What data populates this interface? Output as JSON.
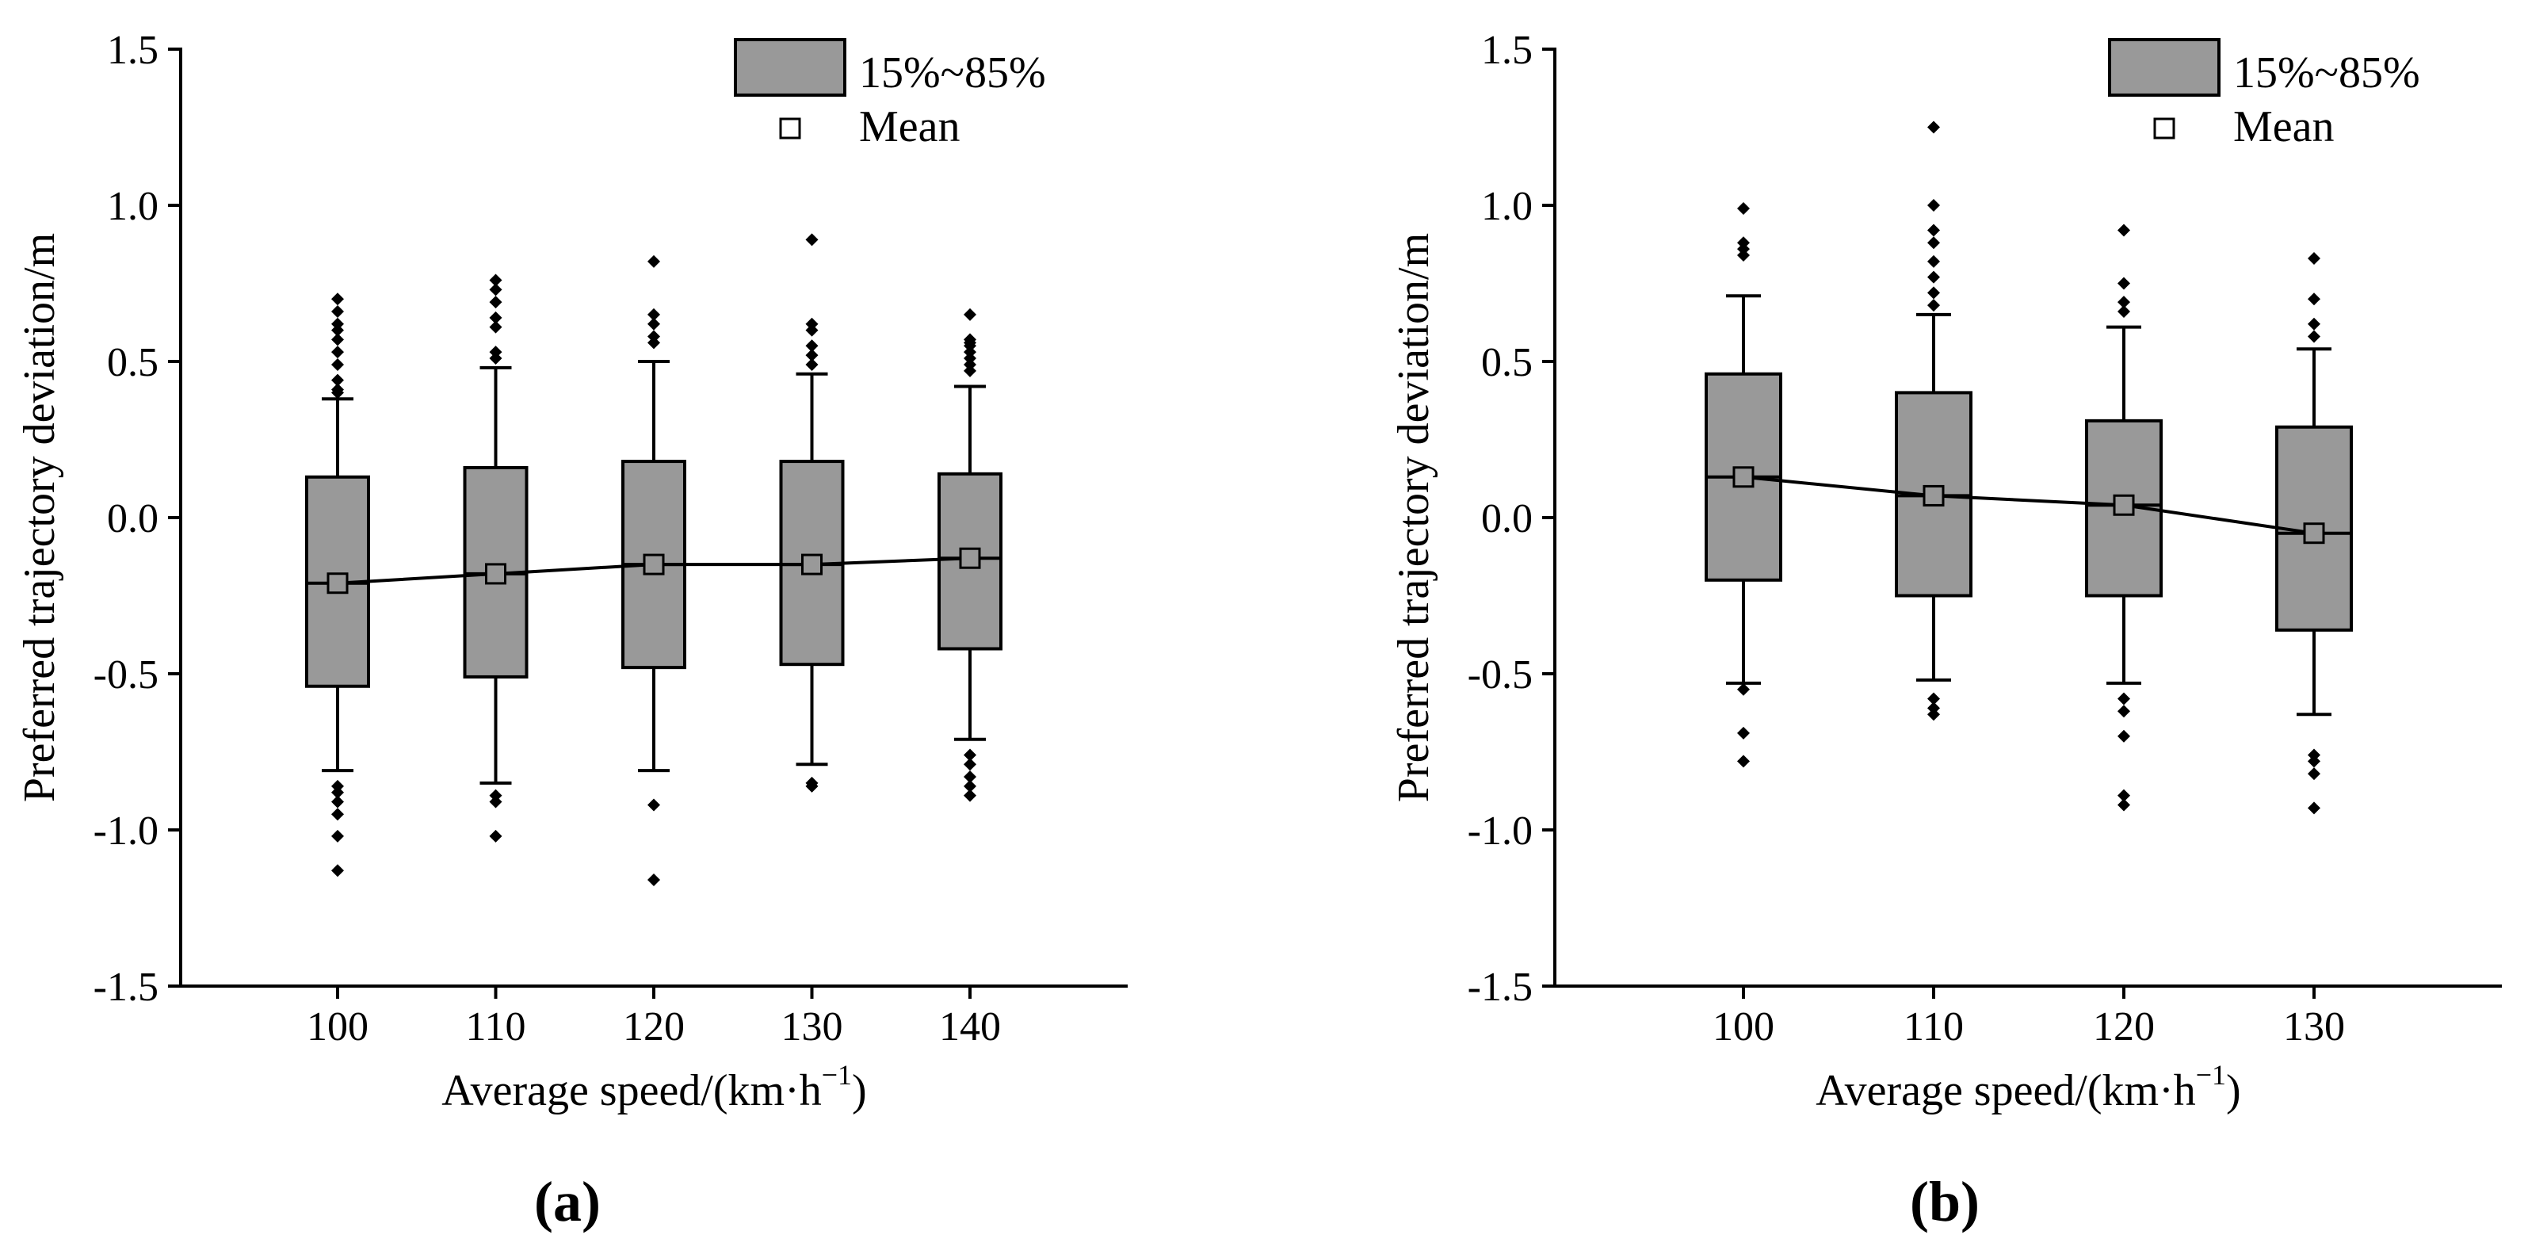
{
  "chart_data": [
    {
      "type": "box",
      "panel_label": "(a)",
      "xlabel": "Average speed/(km·h",
      "xlabel_sup": "−1",
      "xlabel_close": ")",
      "ylabel": "Preferred trajectory deviation/m",
      "ylim": [
        -1.5,
        1.5
      ],
      "yticks": [
        -1.5,
        -1.0,
        -0.5,
        0.0,
        0.5,
        1.0,
        1.5
      ],
      "ytick_labels": [
        "-1.5",
        "-1.0",
        "-0.5",
        "0.0",
        "0.5",
        "1.0",
        "1.5"
      ],
      "categories": [
        "100",
        "110",
        "120",
        "130",
        "140"
      ],
      "legend": {
        "box_label": "15%~85%",
        "mean_label": "Mean",
        "position": "top-right"
      },
      "boxes": [
        {
          "q_low": -0.54,
          "q_high": 0.13,
          "median": -0.21,
          "mean": -0.21,
          "whisker_low": -0.81,
          "whisker_high": 0.38,
          "outliers": [
            0.7,
            0.66,
            0.62,
            0.6,
            0.57,
            0.53,
            0.49,
            0.44,
            0.41,
            0.4,
            -0.86,
            -0.88,
            -0.91,
            -0.95,
            -1.02,
            -1.13
          ]
        },
        {
          "q_low": -0.51,
          "q_high": 0.16,
          "median": -0.18,
          "mean": -0.18,
          "whisker_low": -0.85,
          "whisker_high": 0.48,
          "outliers": [
            0.76,
            0.73,
            0.69,
            0.64,
            0.61,
            0.53,
            0.51,
            -0.89,
            -0.91,
            -1.02
          ]
        },
        {
          "q_low": -0.48,
          "q_high": 0.18,
          "median": -0.15,
          "mean": -0.15,
          "whisker_low": -0.81,
          "whisker_high": 0.5,
          "outliers": [
            0.82,
            0.65,
            0.62,
            0.58,
            0.56,
            -0.92,
            -1.16
          ]
        },
        {
          "q_low": -0.47,
          "q_high": 0.18,
          "median": -0.15,
          "mean": -0.15,
          "whisker_low": -0.79,
          "whisker_high": 0.46,
          "outliers": [
            0.89,
            0.62,
            0.6,
            0.55,
            0.52,
            0.49,
            -0.85,
            -0.86
          ]
        },
        {
          "q_low": -0.42,
          "q_high": 0.14,
          "median": -0.13,
          "mean": -0.13,
          "whisker_low": -0.71,
          "whisker_high": 0.42,
          "outliers": [
            0.65,
            0.57,
            0.56,
            0.55,
            0.53,
            0.51,
            0.49,
            0.47,
            -0.76,
            -0.79,
            -0.83,
            -0.86,
            -0.89
          ]
        }
      ]
    },
    {
      "type": "box",
      "panel_label": "(b)",
      "xlabel": "Average speed/(km·h",
      "xlabel_sup": "−1",
      "xlabel_close": ")",
      "ylabel": "Preferred trajectory deviation/m",
      "ylim": [
        -1.5,
        1.5
      ],
      "yticks": [
        -1.5,
        -1.0,
        -0.5,
        0.0,
        0.5,
        1.0,
        1.5
      ],
      "ytick_labels": [
        "-1.5",
        "-1.0",
        "-0.5",
        "0.0",
        "0.5",
        "1.0",
        "1.5"
      ],
      "categories": [
        "100",
        "110",
        "120",
        "130"
      ],
      "legend": {
        "box_label": "15%~85%",
        "mean_label": "Mean",
        "position": "top-right"
      },
      "boxes": [
        {
          "q_low": -0.2,
          "q_high": 0.46,
          "median": 0.13,
          "mean": 0.13,
          "whisker_low": -0.53,
          "whisker_high": 0.71,
          "outliers": [
            0.99,
            0.88,
            0.86,
            0.84,
            -0.55,
            -0.69,
            -0.78
          ]
        },
        {
          "q_low": -0.25,
          "q_high": 0.4,
          "median": 0.07,
          "mean": 0.07,
          "whisker_low": -0.52,
          "whisker_high": 0.65,
          "outliers": [
            1.25,
            1.0,
            0.92,
            0.88,
            0.82,
            0.77,
            0.72,
            0.68,
            -0.58,
            -0.61,
            -0.63
          ]
        },
        {
          "q_low": -0.25,
          "q_high": 0.31,
          "median": 0.04,
          "mean": 0.04,
          "whisker_low": -0.53,
          "whisker_high": 0.61,
          "outliers": [
            0.92,
            0.75,
            0.69,
            0.66,
            -0.58,
            -0.62,
            -0.7,
            -0.89,
            -0.92
          ]
        },
        {
          "q_low": -0.36,
          "q_high": 0.29,
          "median": -0.05,
          "mean": -0.05,
          "whisker_low": -0.63,
          "whisker_high": 0.54,
          "outliers": [
            0.83,
            0.7,
            0.62,
            0.58,
            -0.76,
            -0.78,
            -0.82,
            -0.93
          ]
        }
      ]
    }
  ],
  "colors": {
    "box_fill": "#999999",
    "stroke": "#000000",
    "background": "#ffffff"
  }
}
